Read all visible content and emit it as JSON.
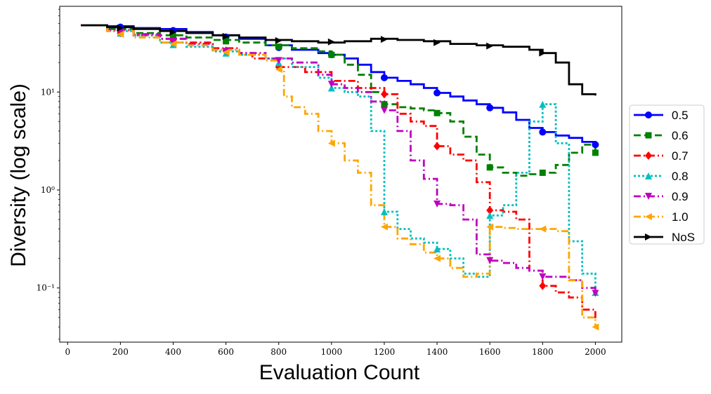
{
  "chart_data": {
    "type": "line",
    "title": "",
    "xlabel": "Evaluation Count",
    "ylabel": "Diversity (log scale)",
    "xlim": [
      -30,
      2100
    ],
    "ylim": [
      0.028,
      75
    ],
    "yscale": "log",
    "grid": false,
    "legend_position": "right, outside plot",
    "x_ticks": [
      0,
      200,
      400,
      600,
      800,
      1000,
      1200,
      1400,
      1600,
      1800,
      2000
    ],
    "x_tick_labels": [
      "0",
      "200",
      "400",
      "600",
      "800",
      "1000",
      "1200",
      "1400",
      "1600",
      "1800",
      "2000"
    ],
    "y_ticks": [
      0.1,
      1,
      10
    ],
    "y_tick_labels": [
      "10⁻¹",
      "10⁰",
      "10¹"
    ],
    "series": [
      {
        "name": "0.5",
        "color": "#0000ff",
        "dash": "solid",
        "marker": "circle",
        "marker_x": [
          200,
          400,
          600,
          800,
          1000,
          1200,
          1400,
          1600,
          1800,
          2000
        ],
        "points": [
          [
            50,
            48
          ],
          [
            150,
            47
          ],
          [
            250,
            45
          ],
          [
            350,
            44
          ],
          [
            450,
            41
          ],
          [
            550,
            38
          ],
          [
            650,
            35
          ],
          [
            750,
            30
          ],
          [
            850,
            27
          ],
          [
            950,
            25
          ],
          [
            1000,
            24
          ],
          [
            1050,
            22
          ],
          [
            1100,
            19
          ],
          [
            1150,
            16
          ],
          [
            1200,
            14
          ],
          [
            1250,
            13
          ],
          [
            1300,
            12
          ],
          [
            1350,
            11
          ],
          [
            1400,
            9.8
          ],
          [
            1450,
            9
          ],
          [
            1500,
            8.2
          ],
          [
            1550,
            7.5
          ],
          [
            1600,
            6.9
          ],
          [
            1650,
            6.2
          ],
          [
            1700,
            5.2
          ],
          [
            1750,
            4.3
          ],
          [
            1800,
            3.9
          ],
          [
            1850,
            3.6
          ],
          [
            1900,
            3.4
          ],
          [
            1950,
            3.1
          ],
          [
            2000,
            2.9
          ]
        ]
      },
      {
        "name": "0.6",
        "color": "#008000",
        "dash": "10,5",
        "marker": "square",
        "marker_x": [
          200,
          400,
          600,
          800,
          1000,
          1200,
          1400,
          1600,
          1800,
          2000
        ],
        "points": [
          [
            50,
            48
          ],
          [
            150,
            44
          ],
          [
            250,
            40
          ],
          [
            350,
            38
          ],
          [
            450,
            36
          ],
          [
            550,
            34
          ],
          [
            650,
            32
          ],
          [
            750,
            30
          ],
          [
            850,
            28
          ],
          [
            950,
            26
          ],
          [
            1000,
            24
          ],
          [
            1050,
            19
          ],
          [
            1100,
            15
          ],
          [
            1150,
            10
          ],
          [
            1200,
            7.5
          ],
          [
            1250,
            7
          ],
          [
            1300,
            6.8
          ],
          [
            1350,
            6.5
          ],
          [
            1400,
            6.1
          ],
          [
            1450,
            5
          ],
          [
            1500,
            3.5
          ],
          [
            1550,
            2.3
          ],
          [
            1600,
            1.7
          ],
          [
            1650,
            1.5
          ],
          [
            1700,
            1.4
          ],
          [
            1750,
            1.45
          ],
          [
            1800,
            1.5
          ],
          [
            1850,
            1.8
          ],
          [
            1900,
            2.4
          ],
          [
            1950,
            2.9
          ],
          [
            2000,
            2.4
          ]
        ]
      },
      {
        "name": "0.7",
        "color": "#ff0000",
        "dash": "10,4,2,4",
        "marker": "diamond",
        "marker_x": [
          200,
          400,
          600,
          800,
          1200,
          1400,
          1600,
          1800
        ],
        "points": [
          [
            50,
            48
          ],
          [
            150,
            42
          ],
          [
            250,
            38
          ],
          [
            350,
            35
          ],
          [
            450,
            32
          ],
          [
            550,
            28
          ],
          [
            650,
            25
          ],
          [
            700,
            22
          ],
          [
            800,
            18
          ],
          [
            900,
            16
          ],
          [
            1000,
            13
          ],
          [
            1100,
            11
          ],
          [
            1200,
            9.5
          ],
          [
            1250,
            6
          ],
          [
            1300,
            5
          ],
          [
            1350,
            4.5
          ],
          [
            1400,
            2.8
          ],
          [
            1450,
            2.3
          ],
          [
            1500,
            2
          ],
          [
            1550,
            1.2
          ],
          [
            1600,
            0.62
          ],
          [
            1650,
            0.6
          ],
          [
            1700,
            0.5
          ],
          [
            1750,
            0.15
          ],
          [
            1800,
            0.105
          ],
          [
            1850,
            0.09
          ],
          [
            1900,
            0.08
          ],
          [
            1950,
            0.06
          ],
          [
            2000,
            0.047
          ]
        ]
      },
      {
        "name": "0.8",
        "color": "#00bfbf",
        "dash": "3,3",
        "marker": "triangle-up",
        "marker_x": [
          200,
          400,
          600,
          800,
          1000,
          1200,
          1400,
          1600,
          1800,
          2000
        ],
        "points": [
          [
            50,
            48
          ],
          [
            150,
            42
          ],
          [
            250,
            38
          ],
          [
            350,
            32
          ],
          [
            450,
            29
          ],
          [
            550,
            26
          ],
          [
            650,
            24
          ],
          [
            750,
            22
          ],
          [
            850,
            18
          ],
          [
            950,
            14
          ],
          [
            1000,
            11
          ],
          [
            1050,
            10
          ],
          [
            1100,
            9
          ],
          [
            1150,
            4
          ],
          [
            1200,
            0.6
          ],
          [
            1250,
            0.4
          ],
          [
            1300,
            0.32
          ],
          [
            1350,
            0.29
          ],
          [
            1400,
            0.25
          ],
          [
            1450,
            0.2
          ],
          [
            1500,
            0.14
          ],
          [
            1550,
            0.13
          ],
          [
            1600,
            0.55
          ],
          [
            1650,
            0.7
          ],
          [
            1700,
            1.5
          ],
          [
            1750,
            5
          ],
          [
            1800,
            7.5
          ],
          [
            1850,
            3
          ],
          [
            1900,
            0.3
          ],
          [
            1950,
            0.14
          ],
          [
            2000,
            0.09
          ]
        ]
      },
      {
        "name": "0.9",
        "color": "#bf00bf",
        "dash": "10,4,2,4",
        "marker": "triangle-down",
        "marker_x": [
          200,
          400,
          600,
          800,
          1000,
          1200,
          1400,
          1600,
          1800,
          2000
        ],
        "points": [
          [
            50,
            48
          ],
          [
            150,
            43
          ],
          [
            250,
            39
          ],
          [
            350,
            35
          ],
          [
            450,
            31
          ],
          [
            550,
            27
          ],
          [
            650,
            25
          ],
          [
            750,
            22
          ],
          [
            850,
            20
          ],
          [
            950,
            15
          ],
          [
            1000,
            12
          ],
          [
            1050,
            11
          ],
          [
            1100,
            10
          ],
          [
            1150,
            8
          ],
          [
            1200,
            6.5
          ],
          [
            1250,
            4
          ],
          [
            1300,
            2
          ],
          [
            1350,
            1.3
          ],
          [
            1400,
            0.72
          ],
          [
            1450,
            0.7
          ],
          [
            1500,
            0.5
          ],
          [
            1550,
            0.22
          ],
          [
            1600,
            0.19
          ],
          [
            1650,
            0.18
          ],
          [
            1700,
            0.16
          ],
          [
            1750,
            0.15
          ],
          [
            1800,
            0.13
          ],
          [
            1850,
            0.13
          ],
          [
            1900,
            0.12
          ],
          [
            1950,
            0.1
          ],
          [
            2000,
            0.088
          ]
        ]
      },
      {
        "name": "1.0",
        "color": "#ffa500",
        "dash": "10,4,2,4",
        "marker": "triangle-left",
        "marker_x": [
          200,
          400,
          600,
          800,
          1000,
          1200,
          1400,
          1600,
          1800,
          2000
        ],
        "points": [
          [
            50,
            48
          ],
          [
            150,
            42
          ],
          [
            250,
            36
          ],
          [
            350,
            32
          ],
          [
            450,
            30
          ],
          [
            550,
            27
          ],
          [
            650,
            24
          ],
          [
            750,
            21
          ],
          [
            800,
            17
          ],
          [
            820,
            9
          ],
          [
            850,
            7
          ],
          [
            900,
            6
          ],
          [
            950,
            4
          ],
          [
            1000,
            3
          ],
          [
            1050,
            2
          ],
          [
            1100,
            1.5
          ],
          [
            1150,
            0.7
          ],
          [
            1200,
            0.42
          ],
          [
            1250,
            0.32
          ],
          [
            1300,
            0.28
          ],
          [
            1350,
            0.23
          ],
          [
            1400,
            0.2
          ],
          [
            1450,
            0.16
          ],
          [
            1500,
            0.13
          ],
          [
            1550,
            0.14
          ],
          [
            1600,
            0.42
          ],
          [
            1650,
            0.41
          ],
          [
            1700,
            0.4
          ],
          [
            1750,
            0.4
          ],
          [
            1800,
            0.4
          ],
          [
            1850,
            0.38
          ],
          [
            1900,
            0.12
          ],
          [
            1950,
            0.05
          ],
          [
            2000,
            0.04
          ]
        ]
      },
      {
        "name": "NoS",
        "color": "#000000",
        "dash": "solid",
        "marker": "triangle-right",
        "marker_x": [
          200,
          400,
          600,
          800,
          1000,
          1200,
          1400,
          1600,
          1800
        ],
        "points": [
          [
            50,
            48
          ],
          [
            150,
            46
          ],
          [
            250,
            44
          ],
          [
            350,
            42
          ],
          [
            450,
            40
          ],
          [
            550,
            38
          ],
          [
            650,
            36
          ],
          [
            750,
            34
          ],
          [
            850,
            33
          ],
          [
            950,
            32
          ],
          [
            1050,
            33
          ],
          [
            1150,
            35
          ],
          [
            1250,
            34
          ],
          [
            1350,
            33
          ],
          [
            1450,
            31
          ],
          [
            1550,
            30
          ],
          [
            1650,
            29
          ],
          [
            1750,
            27
          ],
          [
            1800,
            25
          ],
          [
            1850,
            20
          ],
          [
            1900,
            12
          ],
          [
            1950,
            9.5
          ],
          [
            2000,
            9.2
          ]
        ]
      }
    ]
  }
}
